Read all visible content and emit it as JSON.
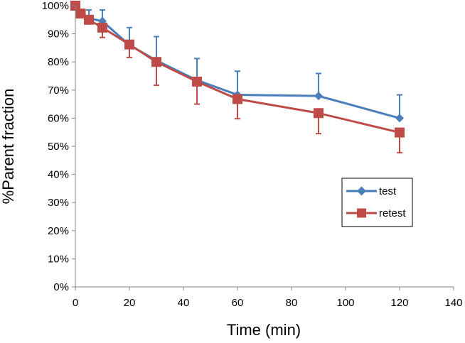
{
  "chart_data": {
    "type": "line",
    "title": "",
    "xlabel": "Time (min)",
    "ylabel": "%Parent fraction",
    "xlim": [
      0,
      140
    ],
    "ylim": [
      0,
      1
    ],
    "x_ticks": [
      0,
      20,
      40,
      60,
      80,
      100,
      120,
      140
    ],
    "x_tick_labels": [
      "0",
      "20",
      "40",
      "60",
      "80",
      "100",
      "120",
      "140"
    ],
    "y_ticks": [
      0,
      0.1,
      0.2,
      0.3,
      0.4,
      0.5,
      0.6,
      0.7,
      0.8,
      0.9,
      1.0
    ],
    "y_tick_labels": [
      "0%",
      "10%",
      "20%",
      "30%",
      "40%",
      "50%",
      "60%",
      "70%",
      "80%",
      "90%",
      "100%"
    ],
    "grid": false,
    "legend_position": "right",
    "series": [
      {
        "name": "test",
        "color": "#4a7ebb",
        "marker": "diamond",
        "x": [
          0,
          2,
          5,
          10,
          20,
          30,
          45,
          60,
          90,
          120
        ],
        "values": [
          1.0,
          0.975,
          0.955,
          0.945,
          0.86,
          0.805,
          0.735,
          0.683,
          0.679,
          0.6
        ],
        "error_up": [
          0.0,
          0.0,
          0.03,
          0.04,
          0.062,
          0.085,
          0.077,
          0.084,
          0.08,
          0.083
        ]
      },
      {
        "name": "retest",
        "color": "#be4b48",
        "marker": "square",
        "x": [
          0,
          2,
          5,
          10,
          20,
          30,
          45,
          60,
          90,
          120
        ],
        "values": [
          1.0,
          0.972,
          0.95,
          0.922,
          0.862,
          0.8,
          0.73,
          0.668,
          0.618,
          0.549
        ],
        "error_down": [
          0.0,
          0.0,
          0.0,
          0.035,
          0.046,
          0.083,
          0.08,
          0.07,
          0.073,
          0.072
        ]
      }
    ]
  }
}
